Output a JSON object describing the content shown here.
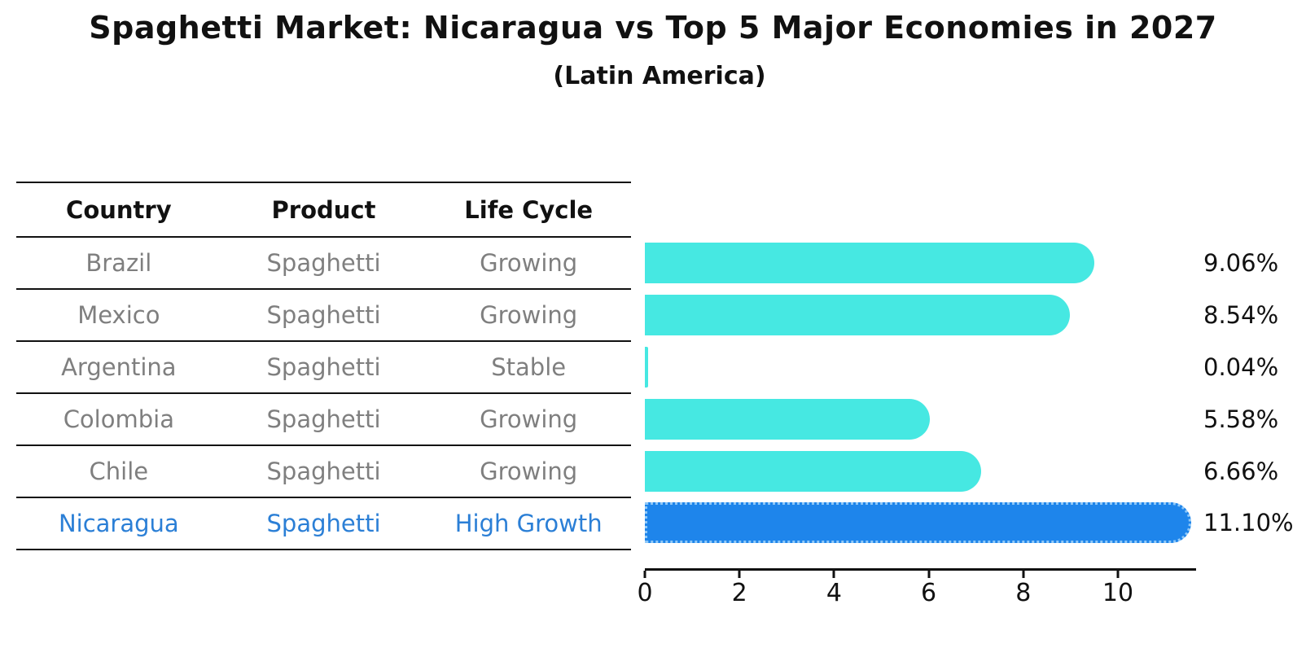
{
  "title": "Spaghetti Market: Nicaragua vs Top 5 Major Economies in 2027",
  "subtitle": "(Latin America)",
  "table": {
    "headers": {
      "country": "Country",
      "product": "Product",
      "life_cycle": "Life Cycle"
    },
    "rows": [
      {
        "country": "Brazil",
        "product": "Spaghetti",
        "life_cycle": "Growing"
      },
      {
        "country": "Mexico",
        "product": "Spaghetti",
        "life_cycle": "Growing"
      },
      {
        "country": "Argentina",
        "product": "Spaghetti",
        "life_cycle": "Stable"
      },
      {
        "country": "Colombia",
        "product": "Spaghetti",
        "life_cycle": "Growing"
      },
      {
        "country": "Chile",
        "product": "Spaghetti",
        "life_cycle": "Growing"
      },
      {
        "country": "Nicaragua",
        "product": "Spaghetti",
        "life_cycle": "High Growth"
      }
    ]
  },
  "chart_data": {
    "type": "bar",
    "orientation": "horizontal",
    "title": "Spaghetti Market: Nicaragua vs Top 5 Major Economies in 2027",
    "subtitle": "(Latin America)",
    "categories": [
      "Brazil",
      "Mexico",
      "Argentina",
      "Colombia",
      "Chile",
      "Nicaragua"
    ],
    "values": [
      9.06,
      8.54,
      0.04,
      5.58,
      6.66,
      11.1
    ],
    "value_labels": [
      "9.06%",
      "8.54%",
      "0.04%",
      "5.58%",
      "6.66%",
      "11.10%"
    ],
    "x_ticks": [
      "0",
      "2",
      "4",
      "6",
      "8",
      "10"
    ],
    "xlim": [
      0,
      11.63
    ],
    "grid": false,
    "legend": "none",
    "highlight_index": 5,
    "bar_color": "#46e8e2",
    "highlight_color": "#1e85eb",
    "highlight_edge_color": "#8fc8f8",
    "highlight_text_color": "#2b7fd6",
    "text_color": "#111111",
    "muted_text_color": "#7f7f7f"
  }
}
